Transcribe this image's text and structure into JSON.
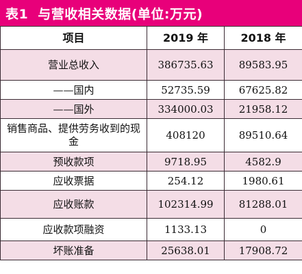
{
  "title": {
    "number": "表1",
    "text": "与营收相关数据(单位:万元)"
  },
  "header": {
    "item": "项目",
    "y2019": "2019 年",
    "y2018": "2018 年"
  },
  "rows": [
    {
      "label": "营业总收入",
      "v2019": "386735.63",
      "v2018": "89583.95"
    },
    {
      "label": "——国内",
      "v2019": "52735.59",
      "v2018": "67625.82"
    },
    {
      "label": "——国外",
      "v2019": "334000.03",
      "v2018": "21958.12"
    },
    {
      "label": "销售商品、提供劳务收到的现金",
      "v2019": "408120",
      "v2018": "89510.64"
    },
    {
      "label": "预收款项",
      "v2019": "9718.95",
      "v2018": "4582.9"
    },
    {
      "label": "应收票据",
      "v2019": "254.12",
      "v2018": "1980.61"
    },
    {
      "label": "应收账款",
      "v2019": "102314.99",
      "v2018": "81288.01"
    },
    {
      "label": "应收款项融资",
      "v2019": "1133.13",
      "v2018": "0"
    },
    {
      "label": "坏账准备",
      "v2019": "25638.01",
      "v2018": "17908.72"
    }
  ]
}
